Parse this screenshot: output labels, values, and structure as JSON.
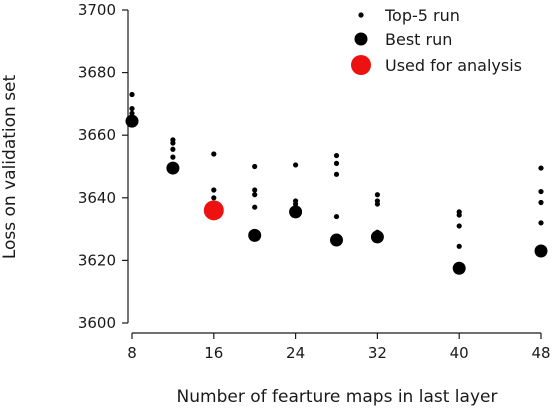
{
  "chart_data": {
    "type": "scatter",
    "xlabel": "Number of fearture maps in last layer",
    "ylabel": "Loss on validation set",
    "xlim": [
      8,
      48
    ],
    "ylim": [
      3600,
      3700
    ],
    "xticks": [
      8,
      16,
      24,
      32,
      40,
      48
    ],
    "yticks": [
      3600,
      3620,
      3640,
      3660,
      3680,
      3700
    ],
    "legend_position": "top-right",
    "series": [
      {
        "name": "Top-5 run",
        "color": "#000000",
        "marker": "small-dot",
        "points": [
          [
            8,
            3673
          ],
          [
            8,
            3668.5
          ],
          [
            8,
            3667
          ],
          [
            8,
            3666
          ],
          [
            12,
            3658.5
          ],
          [
            12,
            3657.5
          ],
          [
            12,
            3655.5
          ],
          [
            12,
            3653
          ],
          [
            16,
            3654
          ],
          [
            16,
            3642.5
          ],
          [
            16,
            3640
          ],
          [
            16,
            3638
          ],
          [
            20,
            3650
          ],
          [
            20,
            3642.5
          ],
          [
            20,
            3641
          ],
          [
            20,
            3637
          ],
          [
            24,
            3650.5
          ],
          [
            24,
            3639
          ],
          [
            24,
            3638
          ],
          [
            24,
            3637
          ],
          [
            28,
            3653.5
          ],
          [
            28,
            3651
          ],
          [
            28,
            3647.5
          ],
          [
            28,
            3634
          ],
          [
            32,
            3641
          ],
          [
            32,
            3639
          ],
          [
            32,
            3638
          ],
          [
            32,
            3629
          ],
          [
            40,
            3635.5
          ],
          [
            40,
            3634.5
          ],
          [
            40,
            3631
          ],
          [
            40,
            3624.5
          ],
          [
            48,
            3649.5
          ],
          [
            48,
            3642
          ],
          [
            48,
            3638.5
          ],
          [
            48,
            3632
          ]
        ]
      },
      {
        "name": "Best run",
        "color": "#000000",
        "marker": "large-dot",
        "points": [
          [
            8,
            3664.5
          ],
          [
            12,
            3649.5
          ],
          [
            20,
            3628
          ],
          [
            24,
            3635.5
          ],
          [
            28,
            3626.5
          ],
          [
            32,
            3627.5
          ],
          [
            40,
            3617.5
          ],
          [
            48,
            3623
          ]
        ]
      },
      {
        "name": "Used for analysis",
        "color": "#ee1111",
        "marker": "large-dot",
        "points": [
          [
            16,
            3636
          ]
        ]
      }
    ]
  }
}
